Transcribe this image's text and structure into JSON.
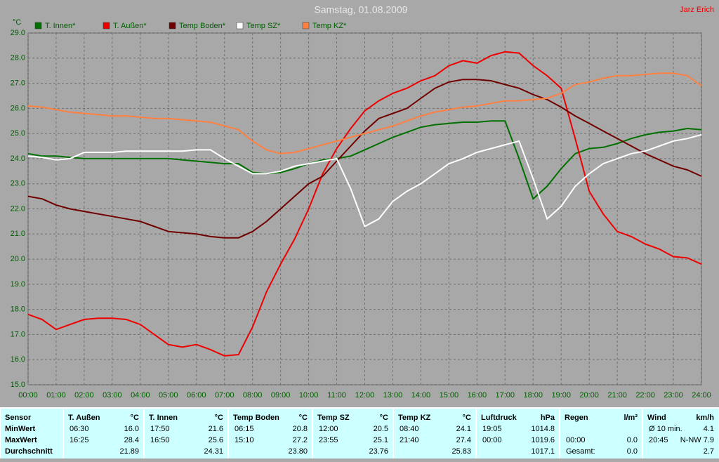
{
  "chart_data": {
    "type": "line",
    "title": "Samstag, 01.08.2009",
    "annotation": "Jarz Erich",
    "y_label": "°C",
    "x": [
      0,
      0.5,
      1,
      1.5,
      2,
      2.5,
      3,
      3.5,
      4,
      4.5,
      5,
      5.5,
      6,
      6.5,
      7,
      7.5,
      8,
      8.5,
      9,
      9.5,
      10,
      10.5,
      11,
      11.5,
      12,
      12.5,
      13,
      13.5,
      14,
      14.5,
      15,
      15.5,
      16,
      16.5,
      17,
      17.5,
      18,
      18.5,
      19,
      19.5,
      20,
      20.5,
      21,
      21.5,
      22,
      22.5,
      23,
      23.5,
      24
    ],
    "series": [
      {
        "name": "T. Innen*",
        "color": "#007000",
        "values": [
          24.2,
          24.1,
          24.1,
          24.05,
          24.0,
          24.0,
          24.0,
          24.0,
          24.0,
          24.0,
          24.0,
          23.95,
          23.9,
          23.85,
          23.8,
          23.8,
          23.45,
          23.4,
          23.45,
          23.6,
          23.8,
          23.95,
          24.0,
          24.1,
          24.35,
          24.6,
          24.85,
          25.05,
          25.25,
          25.35,
          25.4,
          25.45,
          25.45,
          25.5,
          25.5,
          24.0,
          22.4,
          22.9,
          23.6,
          24.2,
          24.4,
          24.45,
          24.6,
          24.8,
          24.95,
          25.05,
          25.1,
          25.2,
          25.15
        ]
      },
      {
        "name": "T. Außen*",
        "color": "#ee0000",
        "values": [
          17.8,
          17.6,
          17.2,
          17.4,
          17.6,
          17.65,
          17.65,
          17.6,
          17.4,
          17.0,
          16.6,
          16.5,
          16.6,
          16.4,
          16.15,
          16.2,
          17.3,
          18.7,
          19.8,
          20.8,
          22.0,
          23.4,
          24.4,
          25.2,
          25.9,
          26.3,
          26.6,
          26.8,
          27.1,
          27.3,
          27.7,
          27.9,
          27.8,
          28.1,
          28.25,
          28.2,
          27.7,
          27.3,
          26.8,
          24.8,
          22.7,
          21.8,
          21.1,
          20.9,
          20.6,
          20.4,
          20.1,
          20.05,
          19.8
        ]
      },
      {
        "name": "Temp Boden*",
        "color": "#700000",
        "values": [
          22.5,
          22.4,
          22.15,
          22.0,
          21.9,
          21.8,
          21.7,
          21.6,
          21.5,
          21.3,
          21.1,
          21.05,
          21.0,
          20.9,
          20.85,
          20.85,
          21.1,
          21.5,
          22.0,
          22.5,
          23.0,
          23.3,
          23.9,
          24.5,
          25.1,
          25.6,
          25.8,
          26.0,
          26.4,
          26.8,
          27.05,
          27.15,
          27.15,
          27.1,
          26.95,
          26.8,
          26.55,
          26.35,
          26.05,
          25.7,
          25.4,
          25.1,
          24.8,
          24.5,
          24.2,
          23.95,
          23.7,
          23.55,
          23.3
        ]
      },
      {
        "name": "Temp SZ*",
        "color": "#ffffff",
        "values": [
          24.1,
          24.05,
          23.95,
          24.0,
          24.25,
          24.25,
          24.25,
          24.3,
          24.3,
          24.3,
          24.3,
          24.3,
          24.35,
          24.35,
          24.0,
          23.7,
          23.4,
          23.4,
          23.5,
          23.7,
          23.8,
          23.9,
          24.0,
          22.8,
          21.3,
          21.6,
          22.3,
          22.7,
          23.0,
          23.4,
          23.8,
          24.0,
          24.25,
          24.4,
          24.55,
          24.7,
          23.2,
          21.6,
          22.1,
          22.9,
          23.4,
          23.8,
          24.0,
          24.2,
          24.3,
          24.5,
          24.7,
          24.8,
          24.95
        ]
      },
      {
        "name": "Temp KZ*",
        "color": "#ff8040",
        "values": [
          26.1,
          26.05,
          25.95,
          25.85,
          25.8,
          25.75,
          25.7,
          25.7,
          25.65,
          25.6,
          25.6,
          25.55,
          25.5,
          25.45,
          25.3,
          25.15,
          24.7,
          24.35,
          24.2,
          24.25,
          24.4,
          24.55,
          24.7,
          24.85,
          25.0,
          25.15,
          25.3,
          25.5,
          25.7,
          25.85,
          25.95,
          26.05,
          26.1,
          26.2,
          26.3,
          26.3,
          26.35,
          26.4,
          26.6,
          26.95,
          27.05,
          27.2,
          27.3,
          27.3,
          27.35,
          27.4,
          27.4,
          27.3,
          26.9
        ]
      }
    ],
    "xlim": [
      0,
      24
    ],
    "xticks": [
      {
        "value": 0,
        "label": "00:00"
      },
      {
        "value": 1,
        "label": "01:00"
      },
      {
        "value": 2,
        "label": "02:00"
      },
      {
        "value": 3,
        "label": "03:00"
      },
      {
        "value": 4,
        "label": "04:00"
      },
      {
        "value": 5,
        "label": "05:00"
      },
      {
        "value": 6,
        "label": "06:00"
      },
      {
        "value": 7,
        "label": "07:00"
      },
      {
        "value": 8,
        "label": "08:00"
      },
      {
        "value": 9,
        "label": "09:00"
      },
      {
        "value": 10,
        "label": "10:00"
      },
      {
        "value": 11,
        "label": "11:00"
      },
      {
        "value": 12,
        "label": "12:00"
      },
      {
        "value": 13,
        "label": "13:00"
      },
      {
        "value": 14,
        "label": "14:00"
      },
      {
        "value": 15,
        "label": "15:00"
      },
      {
        "value": 16,
        "label": "16:00"
      },
      {
        "value": 17,
        "label": "17:00"
      },
      {
        "value": 18,
        "label": "18:00"
      },
      {
        "value": 19,
        "label": "19:00"
      },
      {
        "value": 20,
        "label": "20:00"
      },
      {
        "value": 21,
        "label": "21:00"
      },
      {
        "value": 22,
        "label": "22:00"
      },
      {
        "value": 23,
        "label": "23:00"
      },
      {
        "value": 24,
        "label": "24:00"
      }
    ],
    "ylim": [
      15,
      29
    ],
    "yticks": [
      {
        "value": 15,
        "label": "15.0"
      },
      {
        "value": 16,
        "label": "16.0"
      },
      {
        "value": 17,
        "label": "17.0"
      },
      {
        "value": 18,
        "label": "18.0"
      },
      {
        "value": 19,
        "label": "19.0"
      },
      {
        "value": 20,
        "label": "20.0"
      },
      {
        "value": 21,
        "label": "21.0"
      },
      {
        "value": 22,
        "label": "22.0"
      },
      {
        "value": 23,
        "label": "23.0"
      },
      {
        "value": 24,
        "label": "24.0"
      },
      {
        "value": 25,
        "label": "25.0"
      },
      {
        "value": 26,
        "label": "26.0"
      },
      {
        "value": 27,
        "label": "27.0"
      },
      {
        "value": 28,
        "label": "28.0"
      },
      {
        "value": 29,
        "label": "29.0"
      }
    ],
    "grid": true
  },
  "table": {
    "columns": [
      {
        "name": "Sensor"
      },
      {
        "name": "T. Außen",
        "unit": "°C"
      },
      {
        "name": "T. Innen",
        "unit": "°C"
      },
      {
        "name": "Temp Boden",
        "unit": "°C"
      },
      {
        "name": "Temp SZ",
        "unit": "°C"
      },
      {
        "name": "Temp KZ",
        "unit": "°C"
      },
      {
        "name": "Luftdruck",
        "unit": "hPa"
      },
      {
        "name": "Regen",
        "unit": "l/m²"
      },
      {
        "name": "Wind",
        "unit": "km/h"
      }
    ],
    "rows": [
      {
        "label": "MinWert",
        "cells": [
          [
            "06:30",
            "16.0"
          ],
          [
            "17:50",
            "21.6"
          ],
          [
            "06:15",
            "20.8"
          ],
          [
            "12:00",
            "20.5"
          ],
          [
            "08:40",
            "24.1"
          ],
          [
            "19:05",
            "1014.8"
          ],
          [
            null,
            null
          ],
          [
            "Ø 10 min.",
            "4.1"
          ]
        ]
      },
      {
        "label": "MaxWert",
        "cells": [
          [
            "16:25",
            "28.4"
          ],
          [
            "16:50",
            "25.6"
          ],
          [
            "15:10",
            "27.2"
          ],
          [
            "23:55",
            "25.1"
          ],
          [
            "21:40",
            "27.4"
          ],
          [
            "00:00",
            "1019.6"
          ],
          [
            "00:00",
            "0.0"
          ],
          [
            "20:45",
            "N-NW 7.9"
          ]
        ]
      },
      {
        "label": "Durchschnitt",
        "cells": [
          [
            null,
            "21.89"
          ],
          [
            null,
            "24.31"
          ],
          [
            null,
            "23.80"
          ],
          [
            null,
            "23.76"
          ],
          [
            null,
            "25.83"
          ],
          [
            null,
            "1017.1"
          ],
          [
            "Gesamt:",
            "0.0"
          ],
          [
            null,
            "2.7"
          ]
        ]
      }
    ]
  }
}
